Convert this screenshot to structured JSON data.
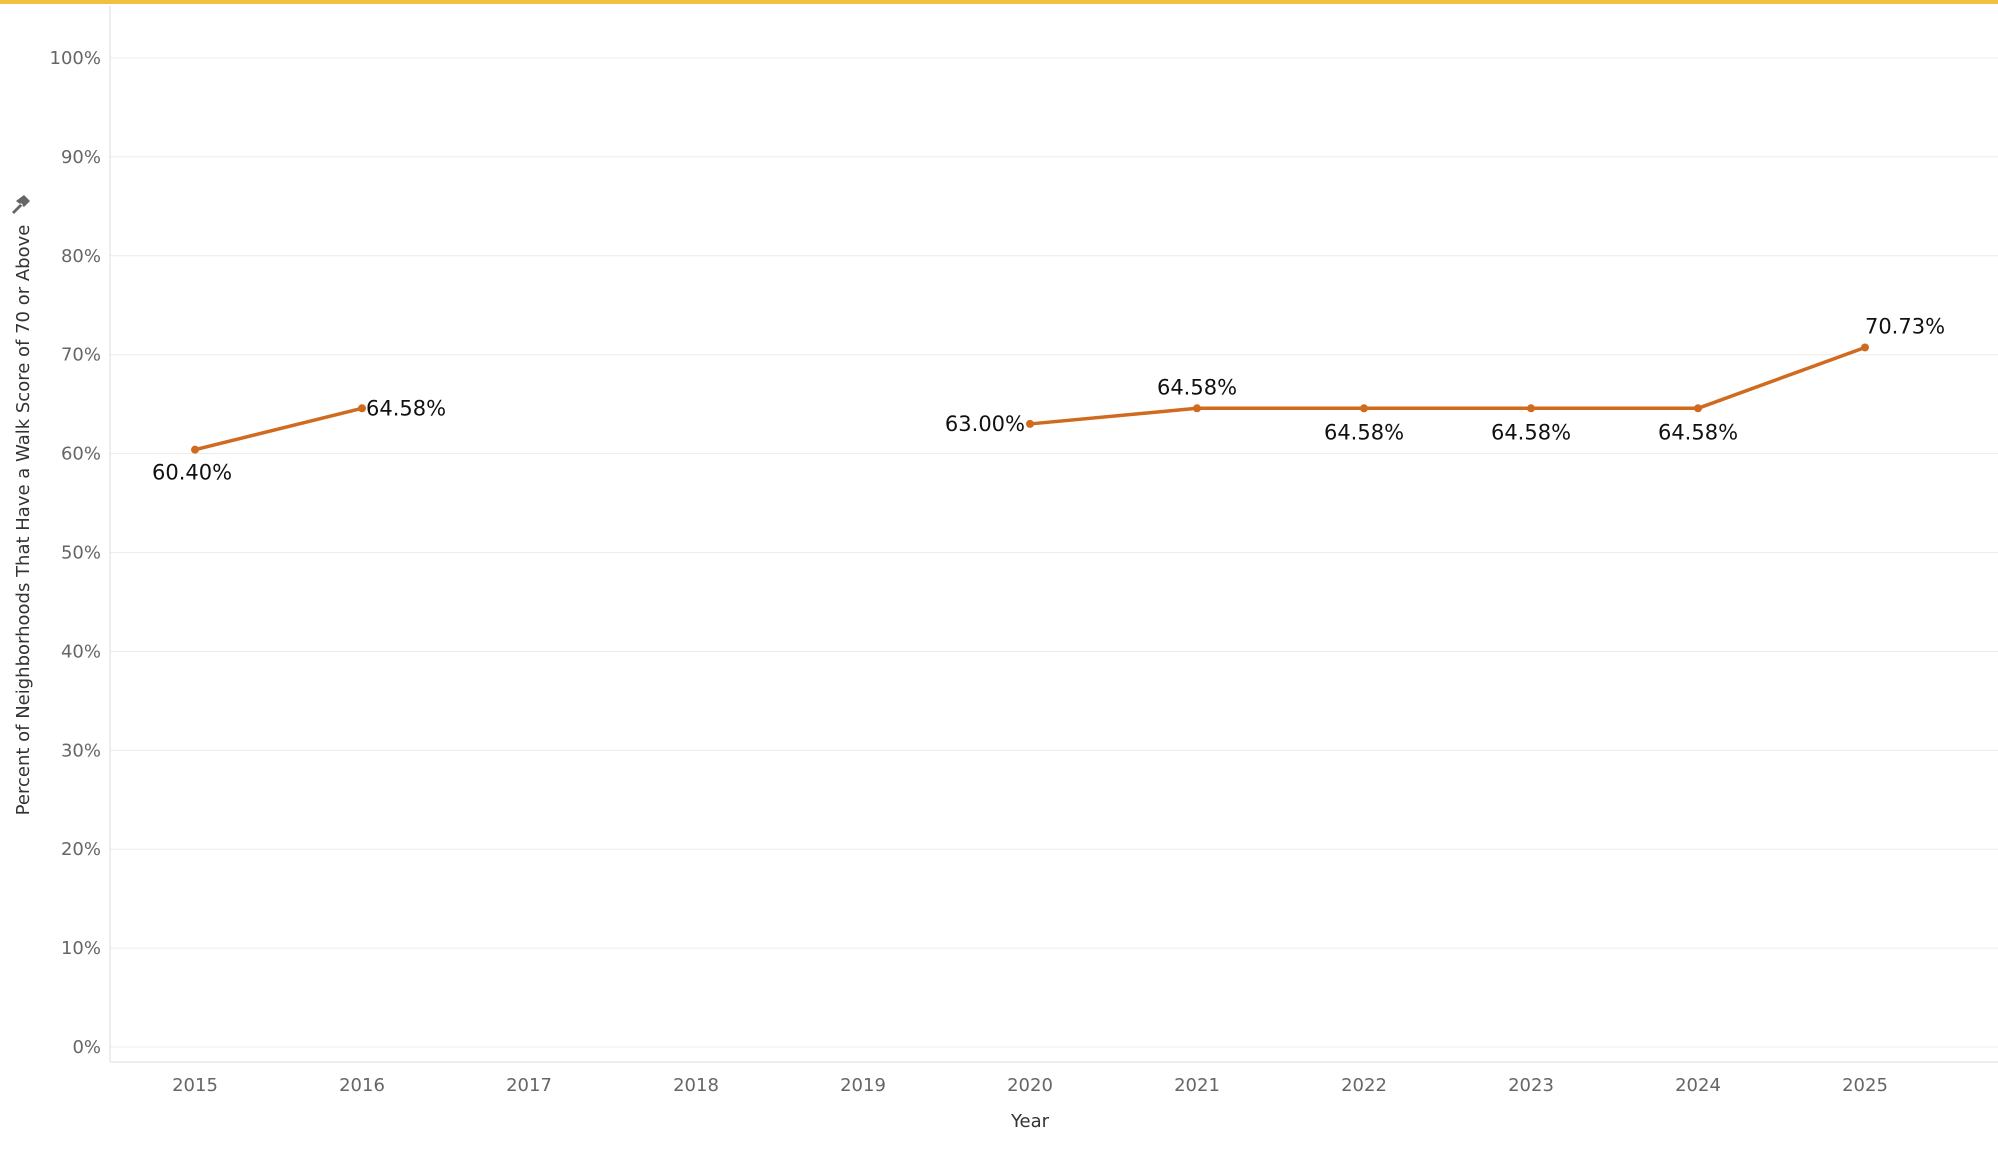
{
  "theme": {
    "top_bar_color": "#f2c040",
    "series_color": "#d06a1e",
    "grid_color": "#ececec",
    "axis_color": "#dddddd"
  },
  "chart_data": {
    "type": "line",
    "title": "",
    "xlabel": "Year",
    "ylabel": "Percent of Neighborhoods That Have a Walk Score of 70 or Above",
    "ylabel_icon": "pin-icon",
    "categories": [
      "2015",
      "2016",
      "2017",
      "2018",
      "2019",
      "2020",
      "2021",
      "2022",
      "2023",
      "2024",
      "2025"
    ],
    "y_ticks": [
      "0%",
      "10%",
      "20%",
      "30%",
      "40%",
      "50%",
      "60%",
      "70%",
      "80%",
      "90%",
      "100%"
    ],
    "ylim": [
      0,
      100
    ],
    "grid": true,
    "legend": "none",
    "series": [
      {
        "values": [
          60.4,
          64.58,
          null,
          null,
          null,
          63.0,
          64.58,
          64.58,
          64.58,
          64.58,
          70.73
        ],
        "labels": [
          "60.40%",
          "64.58%",
          null,
          null,
          null,
          "63.00%",
          "64.58%",
          "64.58%",
          "64.58%",
          "64.58%",
          "70.73%"
        ]
      }
    ]
  }
}
